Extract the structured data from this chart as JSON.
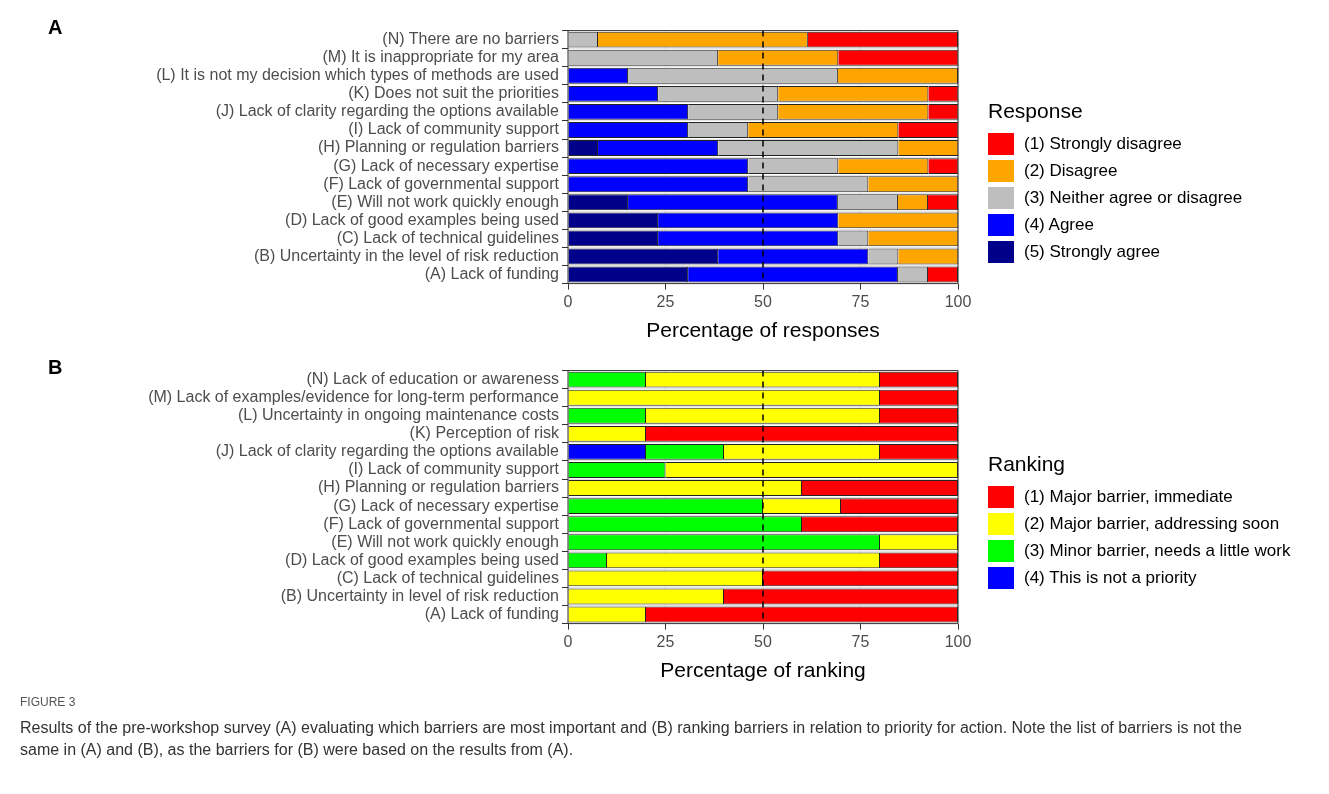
{
  "chart_data": [
    {
      "type": "bar",
      "title": "A",
      "orientation": "horizontal",
      "stacked": true,
      "xlabel": "Percentage of responses",
      "legend_title": "Response",
      "legend": "right",
      "grid": true,
      "xlim": [
        0,
        100
      ],
      "xticks": [
        0,
        25,
        50,
        75,
        100
      ],
      "categories": [
        "(N) There are no barriers",
        "(M) It is inappropriate for my area",
        "(L) It is not my decision which types of methods are used",
        "(K) Does not suit the priorities",
        "(J) Lack of clarity regarding the options available",
        "(I) Lack of community support",
        "(H) Planning or regulation barriers",
        "(G) Lack of necessary expertise",
        "(F) Lack of governmental support",
        "(E) Will not work quickly enough",
        "(D) Lack of good examples being used",
        "(C) Lack of technical guidelines",
        "(B) Uncertainty in the level of risk reduction",
        "(A) Lack of funding"
      ],
      "series": [
        {
          "name": "(5) Strongly agree",
          "color": "#00008b",
          "values": [
            0,
            0,
            0,
            0,
            0,
            0,
            7.7,
            0,
            0,
            15.4,
            23.1,
            23.1,
            38.5,
            30.8
          ]
        },
        {
          "name": "(4) Agree",
          "color": "#0000ff",
          "values": [
            0,
            0,
            15.4,
            23.1,
            30.8,
            30.8,
            30.8,
            46.2,
            46.2,
            53.8,
            46.2,
            46.2,
            38.5,
            53.8
          ]
        },
        {
          "name": "(3) Neither agree or disagree",
          "color": "#bebebe",
          "values": [
            7.7,
            38.5,
            53.8,
            30.8,
            23.1,
            15.4,
            46.2,
            23.1,
            30.8,
            15.4,
            0,
            7.7,
            7.7,
            7.7
          ]
        },
        {
          "name": "(2) Disagree",
          "color": "#ffa500",
          "values": [
            53.8,
            30.8,
            30.8,
            38.5,
            38.5,
            38.5,
            15.4,
            23.1,
            23.1,
            7.7,
            30.8,
            23.1,
            15.4,
            0
          ]
        },
        {
          "name": "(1) Strongly disagree",
          "color": "#ff0000",
          "values": [
            38.5,
            30.8,
            0,
            7.7,
            7.7,
            15.4,
            0,
            7.7,
            0,
            7.7,
            0,
            0,
            0,
            7.7
          ]
        }
      ],
      "ref_lines": [
        {
          "axis": "x",
          "value": 50,
          "line_style": "dashed",
          "color": "#000000"
        }
      ]
    },
    {
      "type": "bar",
      "title": "B",
      "orientation": "horizontal",
      "stacked": true,
      "xlabel": "Percentage of ranking",
      "legend_title": "Ranking",
      "legend": "right",
      "grid": true,
      "xlim": [
        0,
        100
      ],
      "xticks": [
        0,
        25,
        50,
        75,
        100
      ],
      "categories": [
        "(N) Lack of education or awareness",
        "(M) Lack of examples/evidence for long-term performance",
        "(L) Uncertainty in ongoing maintenance costs",
        "(K) Perception of risk",
        "(J) Lack of clarity regarding the options available",
        "(I) Lack of community support",
        "(H) Planning or regulation barriers",
        "(G) Lack of necessary expertise",
        "(F) Lack of governmental support",
        "(E) Will not work quickly enough",
        "(D) Lack of good examples being used",
        "(C) Lack of technical guidelines",
        "(B) Uncertainty in level of risk reduction",
        "(A) Lack of funding"
      ],
      "series": [
        {
          "name": "(4) This is not a priority",
          "color": "#0000ff",
          "values": [
            0,
            0,
            0,
            0,
            20,
            0,
            0,
            0,
            0,
            0,
            0,
            0,
            0,
            0
          ]
        },
        {
          "name": "(3) Minor barrier, needs a little work",
          "color": "#00ff00",
          "values": [
            20,
            0,
            20,
            0,
            20,
            25,
            0,
            50,
            60,
            80,
            10,
            0,
            0,
            0
          ]
        },
        {
          "name": "(2) Major barrier, addressing soon",
          "color": "#ffff00",
          "values": [
            60,
            80,
            60,
            20,
            40,
            75,
            60,
            20,
            0,
            20,
            70,
            50,
            40,
            20
          ]
        },
        {
          "name": "(1) Major barrier, immediate",
          "color": "#ff0000",
          "values": [
            20,
            20,
            20,
            80,
            20,
            0,
            40,
            30,
            40,
            0,
            20,
            50,
            60,
            80
          ]
        }
      ],
      "ref_lines": [
        {
          "axis": "x",
          "value": 50,
          "line_style": "dashed",
          "color": "#000000"
        }
      ],
      "annotations": [
        "FIGURE 3",
        "Results of the pre-workshop survey (A) evaluating which barriers are most important and (B) ranking barriers in relation to priority for action. Note the list of barriers is not the same in (A) and (B), as the barriers for (B) were based on the results from (A)."
      ]
    }
  ]
}
